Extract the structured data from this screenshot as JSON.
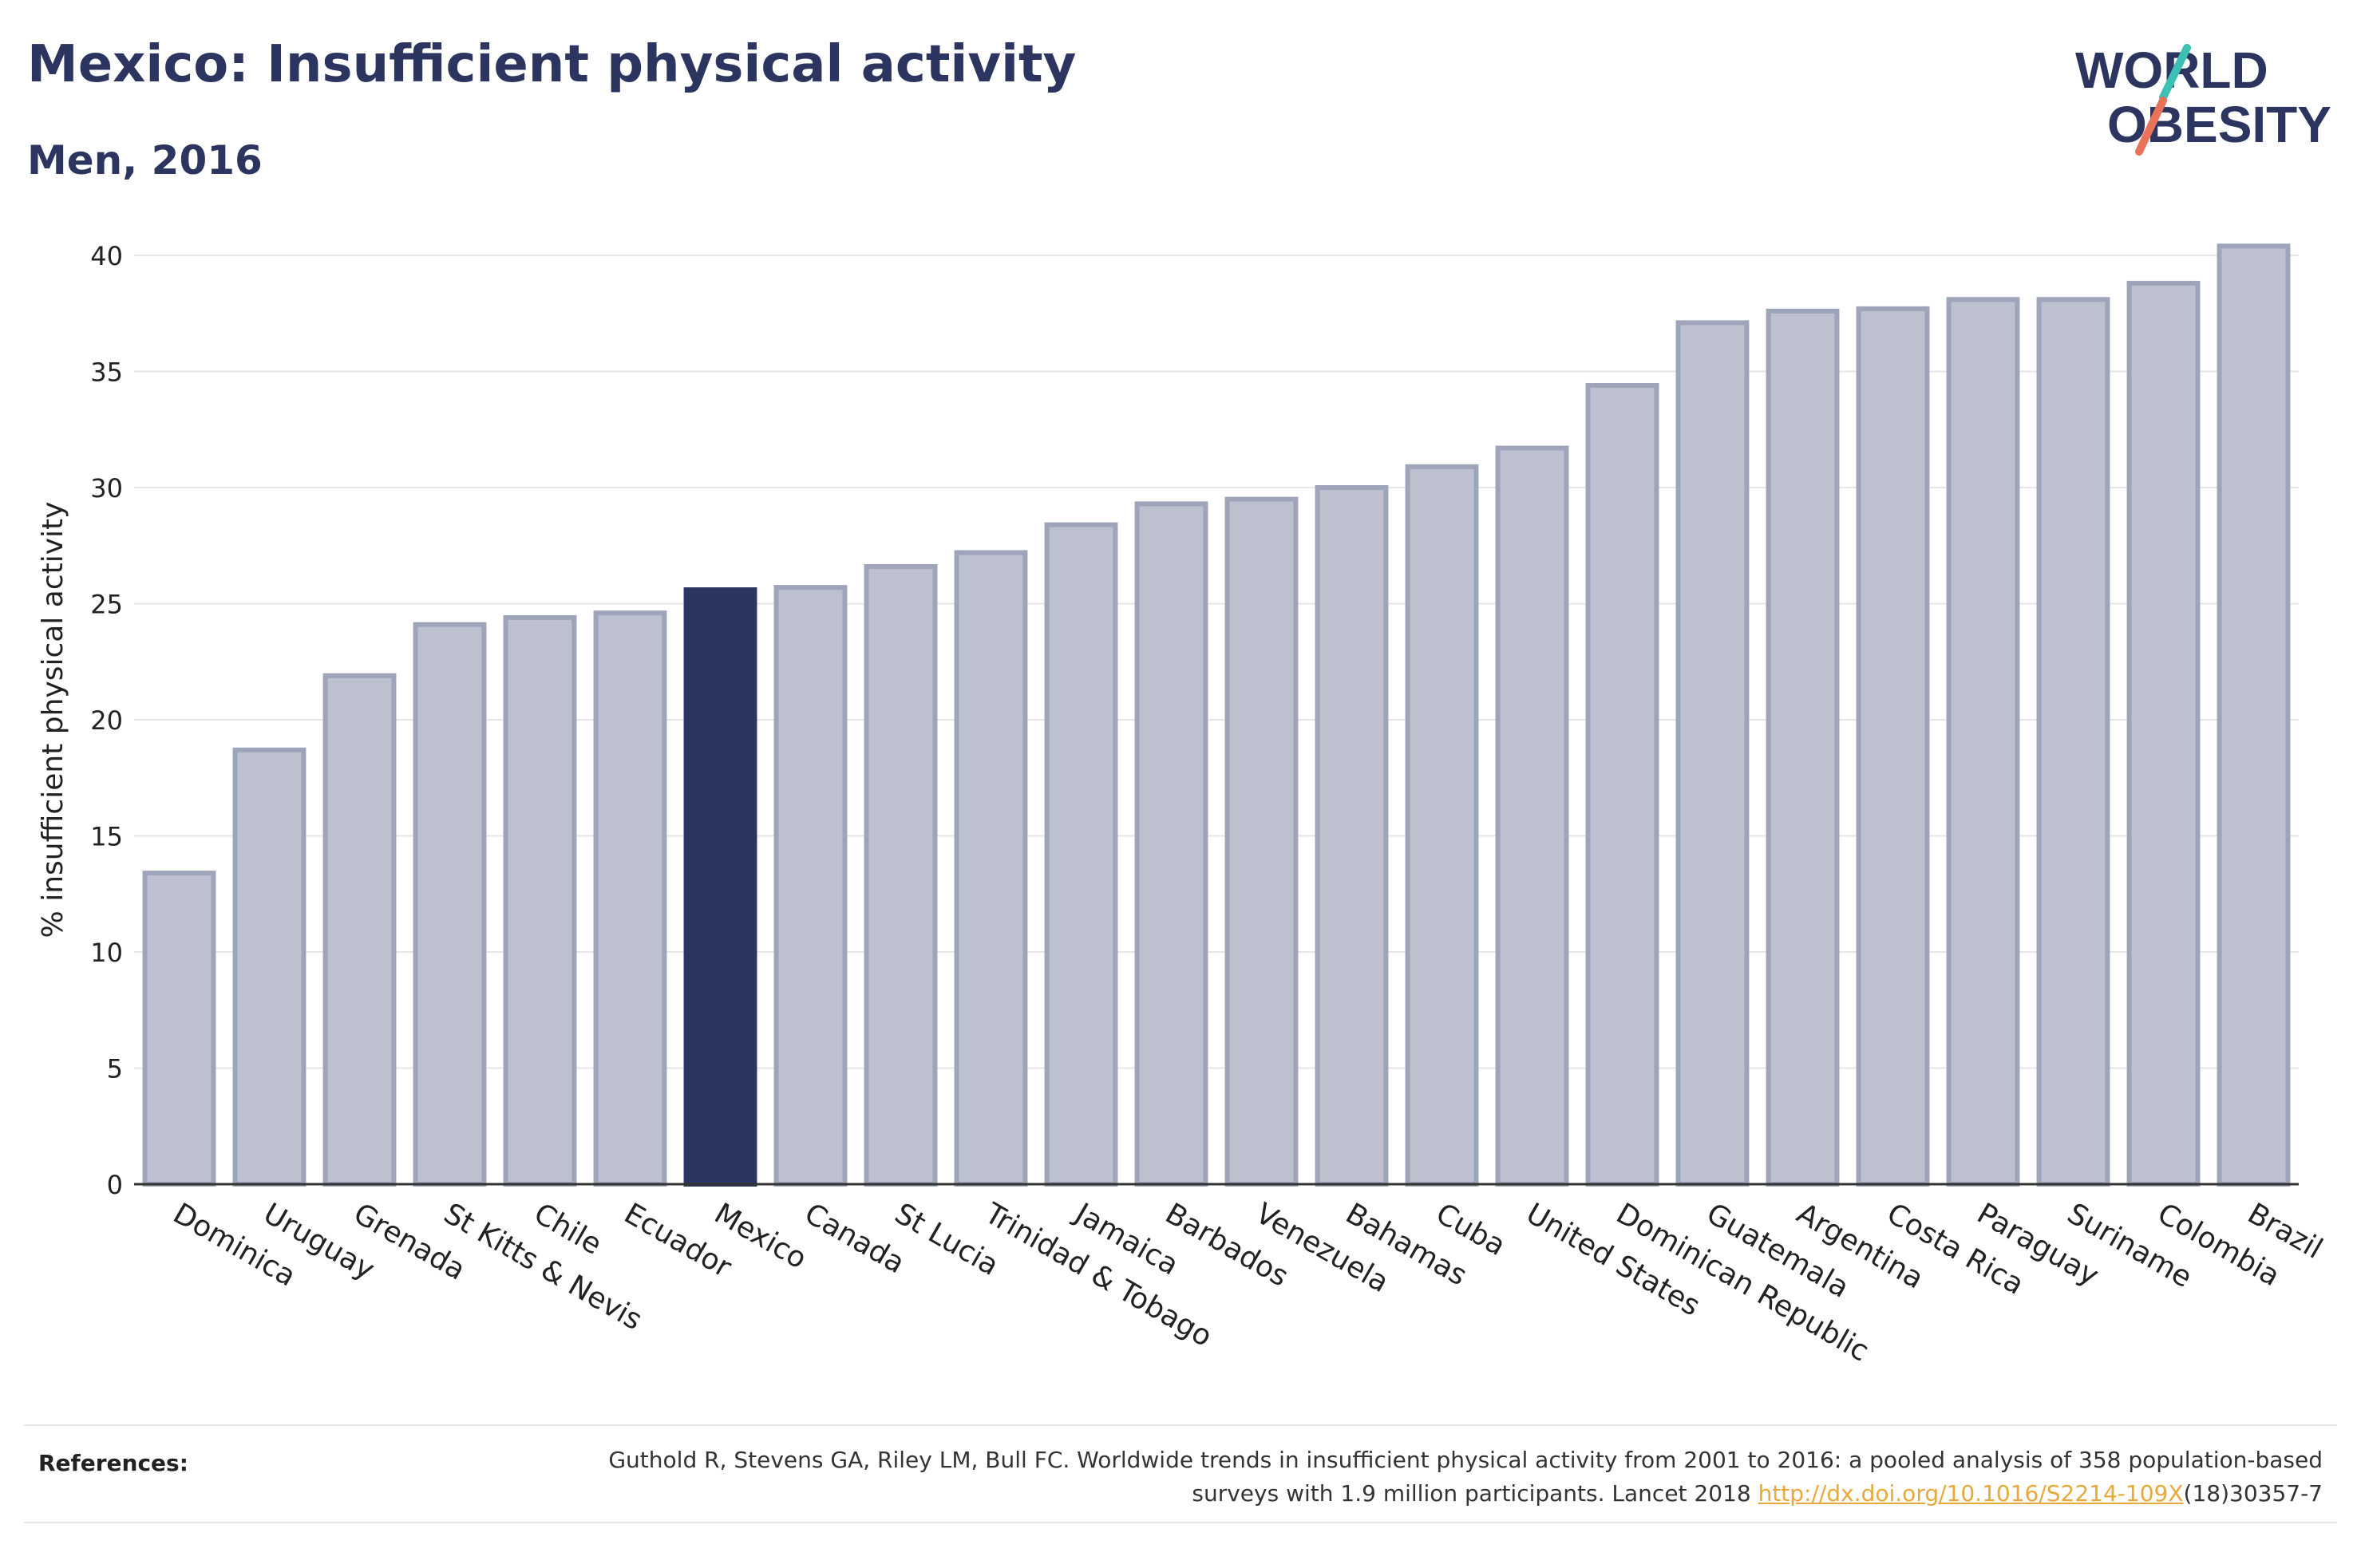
{
  "header": {
    "title": "Mexico: Insufficient physical activity",
    "subtitle": "Men, 2016"
  },
  "logo": {
    "line1": "WORLD",
    "line2": "OBESITY",
    "accent_teal": "#3cbfb4",
    "accent_coral": "#e8735a"
  },
  "colors": {
    "bar": "#bcc0cf",
    "bar_stroke": "#9ea4ba",
    "highlight": "#2b3560",
    "text": "#2b3560"
  },
  "chart_data": {
    "type": "bar",
    "title": "",
    "xlabel": "",
    "ylabel": "% insufficient physical activity",
    "ylim": [
      0,
      40
    ],
    "yticks": [
      0,
      5,
      10,
      15,
      20,
      25,
      30,
      35,
      40
    ],
    "grid": true,
    "highlight": "Mexico",
    "categories": [
      "Dominica",
      "Uruguay",
      "Grenada",
      "St Kitts & Nevis",
      "Chile",
      "Ecuador",
      "Mexico",
      "Canada",
      "St Lucia",
      "Trinidad & Tobago",
      "Jamaica",
      "Barbados",
      "Venezuela",
      "Bahamas",
      "Cuba",
      "United States",
      "Dominican Republic",
      "Guatemala",
      "Argentina",
      "Costa Rica",
      "Paraguay",
      "Suriname",
      "Colombia",
      "Brazil"
    ],
    "values": [
      13.4,
      18.7,
      21.9,
      24.1,
      24.4,
      24.6,
      25.6,
      25.7,
      26.6,
      27.2,
      28.4,
      29.3,
      29.5,
      30.0,
      30.9,
      31.7,
      34.4,
      37.1,
      37.6,
      37.7,
      38.1,
      38.1,
      38.8,
      40.4
    ]
  },
  "references": {
    "label": "References:",
    "text_before": "Guthold R, Stevens GA, Riley LM, Bull FC. Worldwide trends in insufficient physical activity from 2001 to 2016: a pooled analysis of 358 population-based surveys with 1.9 million participants. Lancet 2018 ",
    "link": "http://dx.doi.org/10.1016/S2214-109X",
    "text_after": "(18)30357-7"
  }
}
